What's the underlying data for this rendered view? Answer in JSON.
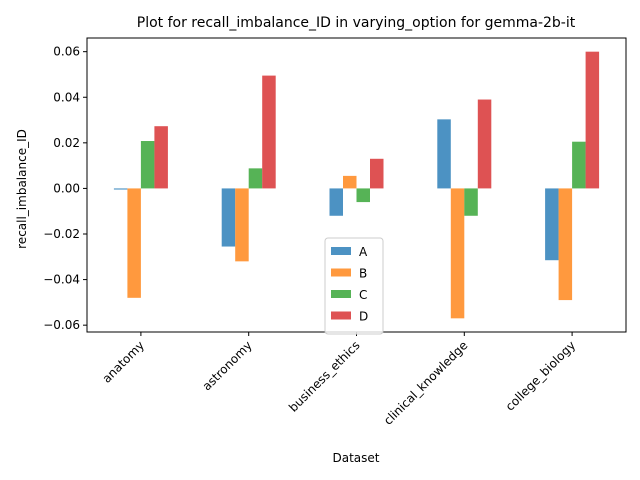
{
  "chart_data": {
    "type": "bar",
    "title": "Plot for recall_imbalance_ID in varying_option for gemma-2b-it",
    "xlabel": "Dataset",
    "ylabel": "recall_imbalance_ID",
    "categories": [
      "anatomy",
      "astronomy",
      "business_ethics",
      "clinical_knowledge",
      "college_biology"
    ],
    "series": [
      {
        "name": "A",
        "color": "#1f77b4",
        "values": [
          -0.0005,
          -0.0255,
          -0.012,
          0.0303,
          -0.0315
        ]
      },
      {
        "name": "B",
        "color": "#ff7f0e",
        "values": [
          -0.048,
          -0.032,
          0.0055,
          -0.057,
          -0.049
        ]
      },
      {
        "name": "C",
        "color": "#2ca02c",
        "values": [
          0.0208,
          0.0088,
          -0.006,
          -0.012,
          0.0205
        ]
      },
      {
        "name": "D",
        "color": "#d62728",
        "values": [
          0.0273,
          0.0495,
          0.013,
          0.039,
          0.06
        ]
      }
    ],
    "ylim": [
      -0.063,
      0.066
    ],
    "yticks": [
      -0.06,
      -0.04,
      -0.02,
      0.0,
      0.02,
      0.04,
      0.06
    ],
    "ytick_labels": [
      "−0.06",
      "−0.04",
      "−0.02",
      "0.00",
      "0.02",
      "0.04",
      "0.06"
    ],
    "grid": false,
    "legend_position": "lower center"
  }
}
